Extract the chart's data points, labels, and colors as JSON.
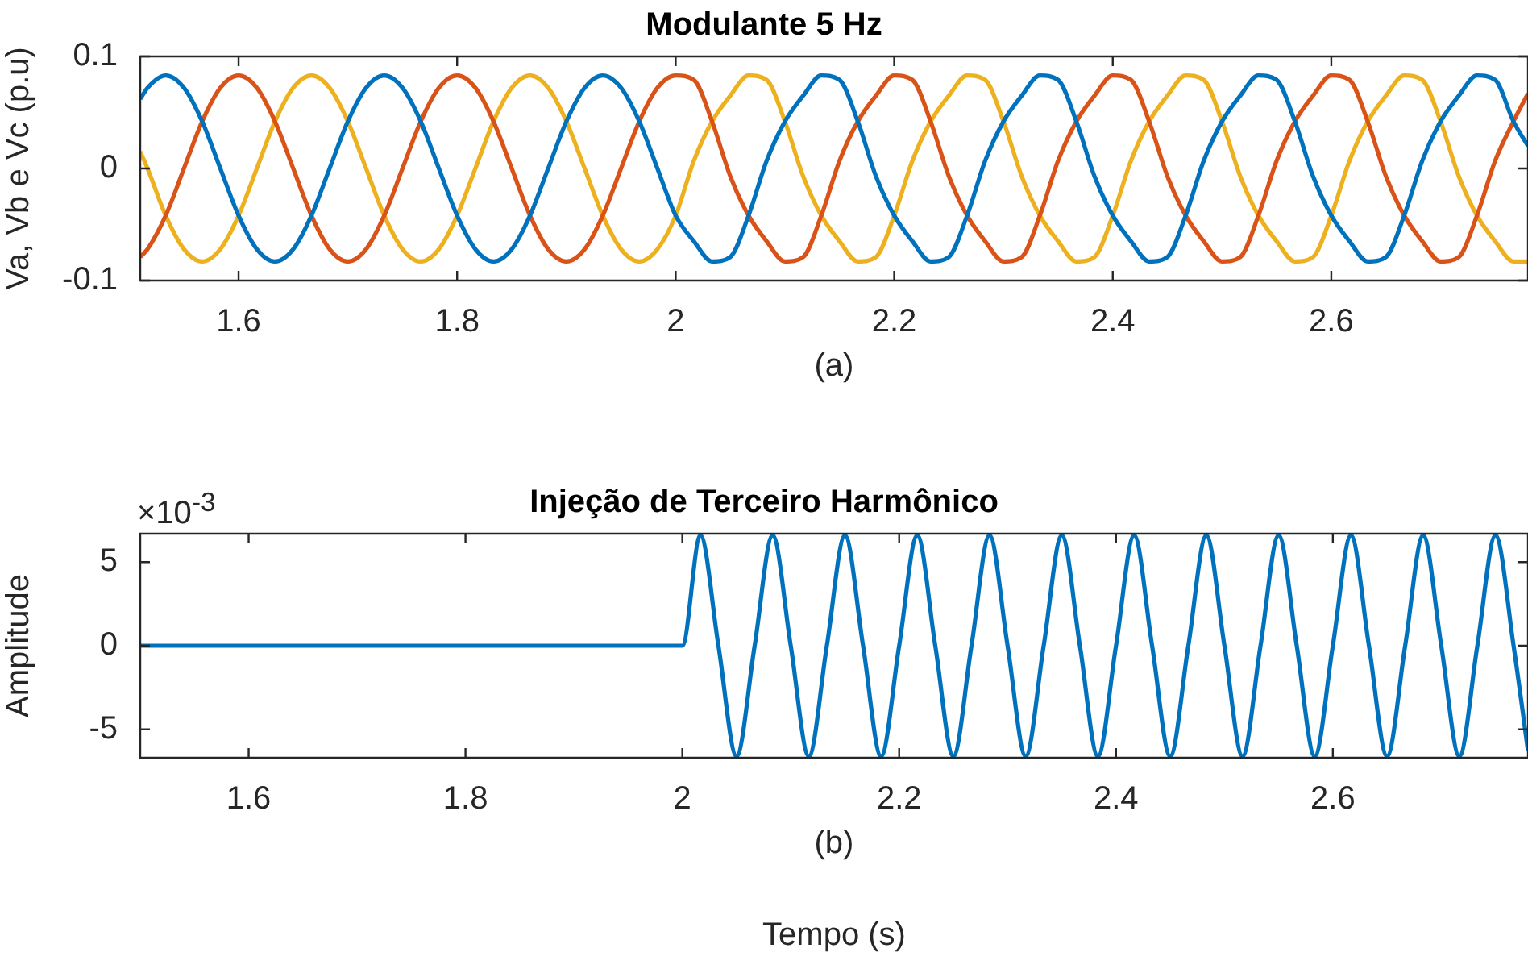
{
  "chart_data": [
    {
      "type": "line",
      "title": "Modulante 5 Hz",
      "ylabel": "Va, Vb e Vc (p.u)",
      "annotations": [
        "(a)"
      ],
      "xlim": [
        1.51,
        2.78
      ],
      "xticks": [
        {
          "value": 1.6,
          "label": "1.6"
        },
        {
          "value": 1.8,
          "label": "1.8"
        },
        {
          "value": 2,
          "label": "2"
        },
        {
          "value": 2.2,
          "label": "2.2"
        },
        {
          "value": 2.4,
          "label": "2.4"
        },
        {
          "value": 2.6,
          "label": "2.6"
        }
      ],
      "ylim": [
        -0.1,
        0.1
      ],
      "yticks": [
        -0.1,
        0,
        0.1
      ],
      "x": [
        1.51,
        1.5167,
        1.5333,
        1.55,
        1.5667,
        1.5833,
        1.6,
        1.6167,
        1.6333,
        1.65,
        1.6667,
        1.6833,
        1.7,
        1.7167,
        1.7333,
        1.75,
        1.7667,
        1.7833,
        1.8,
        1.8167,
        1.8333,
        1.85,
        1.8667,
        1.8833,
        1.9,
        1.9167,
        1.9333,
        1.95,
        1.9667,
        1.9833,
        2,
        2.0167,
        2.0333,
        2.05,
        2.0667,
        2.0833,
        2.1,
        2.1167,
        2.1333,
        2.15,
        2.1667,
        2.1833,
        2.2,
        2.2167,
        2.2333,
        2.25,
        2.2667,
        2.2833,
        2.3,
        2.3167,
        2.3333,
        2.35,
        2.3667,
        2.3833,
        2.4,
        2.4167,
        2.4333,
        2.45,
        2.4667,
        2.4833,
        2.5,
        2.5167,
        2.5333,
        2.55,
        2.5667,
        2.5833,
        2.6,
        2.6167,
        2.6333,
        2.65,
        2.6667,
        2.6833,
        2.7,
        2.7167,
        2.7333,
        2.75,
        2.7667,
        2.78
      ],
      "series": [
        {
          "color": "#0072bd",
          "values": [
            0.062,
            0.072,
            0.083,
            0.072,
            0.042,
            0,
            -0.042,
            -0.072,
            -0.083,
            -0.072,
            -0.042,
            0,
            0.042,
            0.072,
            0.083,
            0.072,
            0.042,
            0,
            -0.042,
            -0.072,
            -0.083,
            -0.072,
            -0.042,
            0,
            0.042,
            0.072,
            0.083,
            0.072,
            0.042,
            0,
            -0.042,
            -0.065,
            -0.083,
            -0.079,
            -0.042,
            0.007,
            0.042,
            0.065,
            0.083,
            0.079,
            0.042,
            -0.007,
            -0.042,
            -0.065,
            -0.083,
            -0.079,
            -0.042,
            0.007,
            0.042,
            0.065,
            0.083,
            0.079,
            0.042,
            -0.007,
            -0.042,
            -0.065,
            -0.083,
            -0.079,
            -0.042,
            0.007,
            0.042,
            0.065,
            0.083,
            0.079,
            0.042,
            -0.007,
            -0.042,
            -0.065,
            -0.083,
            -0.079,
            -0.042,
            0.007,
            0.042,
            0.065,
            0.083,
            0.079,
            0.042,
            0.02
          ]
        },
        {
          "color": "#d95319",
          "values": [
            -0.079,
            -0.072,
            -0.042,
            0,
            0.042,
            0.072,
            0.083,
            0.072,
            0.042,
            0,
            -0.042,
            -0.072,
            -0.083,
            -0.072,
            -0.042,
            0,
            0.042,
            0.072,
            0.083,
            0.072,
            0.042,
            0,
            -0.042,
            -0.072,
            -0.083,
            -0.072,
            -0.042,
            0,
            0.042,
            0.072,
            0.083,
            0.079,
            0.042,
            -0.007,
            -0.042,
            -0.065,
            -0.083,
            -0.079,
            -0.042,
            0.007,
            0.042,
            0.065,
            0.083,
            0.079,
            0.042,
            -0.007,
            -0.042,
            -0.065,
            -0.083,
            -0.079,
            -0.042,
            0.007,
            0.042,
            0.065,
            0.083,
            0.079,
            0.042,
            -0.007,
            -0.042,
            -0.065,
            -0.083,
            -0.079,
            -0.042,
            0.007,
            0.042,
            0.065,
            0.083,
            0.079,
            0.042,
            -0.007,
            -0.042,
            -0.065,
            -0.083,
            -0.079,
            -0.042,
            0.007,
            0.042,
            0.067
          ]
        },
        {
          "color": "#edb120",
          "values": [
            0.015,
            0,
            -0.042,
            -0.072,
            -0.083,
            -0.072,
            -0.042,
            0,
            0.042,
            0.072,
            0.083,
            0.072,
            0.042,
            0,
            -0.042,
            -0.072,
            -0.083,
            -0.072,
            -0.042,
            0,
            0.042,
            0.072,
            0.083,
            0.072,
            0.042,
            0,
            -0.042,
            -0.072,
            -0.083,
            -0.072,
            -0.042,
            0.007,
            0.042,
            0.065,
            0.083,
            0.079,
            0.042,
            -0.007,
            -0.042,
            -0.065,
            -0.083,
            -0.079,
            -0.042,
            0.007,
            0.042,
            0.065,
            0.083,
            0.079,
            0.042,
            -0.007,
            -0.042,
            -0.065,
            -0.083,
            -0.079,
            -0.042,
            0.007,
            0.042,
            0.065,
            0.083,
            0.079,
            0.042,
            -0.007,
            -0.042,
            -0.065,
            -0.083,
            -0.079,
            -0.042,
            0.007,
            0.042,
            0.065,
            0.083,
            0.079,
            0.042,
            -0.007,
            -0.042,
            -0.065,
            -0.083,
            -0.083
          ]
        }
      ]
    },
    {
      "type": "line",
      "title": "Injeção de Terceiro Harmônico",
      "ylabel": "Amplitude",
      "xlabel": "Tempo (s)",
      "annotations": [
        "(b)",
        "×10$^{-3}$"
      ],
      "xlim": [
        1.5,
        2.78
      ],
      "xticks": [
        {
          "value": 1.6,
          "label": "1.6"
        },
        {
          "value": 1.8,
          "label": "1.8"
        },
        {
          "value": 2,
          "label": "2"
        },
        {
          "value": 2.2,
          "label": "2.2"
        },
        {
          "value": 2.4,
          "label": "2.4"
        },
        {
          "value": 2.6,
          "label": "2.6"
        }
      ],
      "ylim": [
        -6.7,
        6.7
      ],
      "yticks": [
        -5,
        0,
        5
      ],
      "x": [
        1.5,
        2,
        2.0167,
        2.0333,
        2.05,
        2.0667,
        2.0833,
        2.1,
        2.1167,
        2.1333,
        2.15,
        2.1667,
        2.1833,
        2.2,
        2.2167,
        2.2333,
        2.25,
        2.2667,
        2.2833,
        2.3,
        2.3167,
        2.3333,
        2.35,
        2.3667,
        2.3833,
        2.4,
        2.4167,
        2.4333,
        2.45,
        2.4667,
        2.4833,
        2.5,
        2.5167,
        2.5333,
        2.55,
        2.5667,
        2.5833,
        2.6,
        2.6167,
        2.6333,
        2.65,
        2.6667,
        2.6833,
        2.7,
        2.7167,
        2.7333,
        2.75,
        2.7667,
        2.78
      ],
      "series": [
        {
          "color": "#0072bd",
          "values": [
            0,
            0,
            6.6,
            0,
            -6.6,
            0,
            6.6,
            0,
            -6.6,
            0,
            6.6,
            0,
            -6.6,
            0,
            6.6,
            0,
            -6.6,
            0,
            6.6,
            0,
            -6.6,
            0,
            6.6,
            0,
            -6.6,
            0,
            6.6,
            0,
            -6.6,
            0,
            6.6,
            0,
            -6.6,
            0,
            6.6,
            0,
            -6.6,
            0,
            6.6,
            0,
            -6.6,
            0,
            6.6,
            0,
            -6.6,
            0,
            6.6,
            0,
            -6.3
          ]
        }
      ]
    }
  ]
}
